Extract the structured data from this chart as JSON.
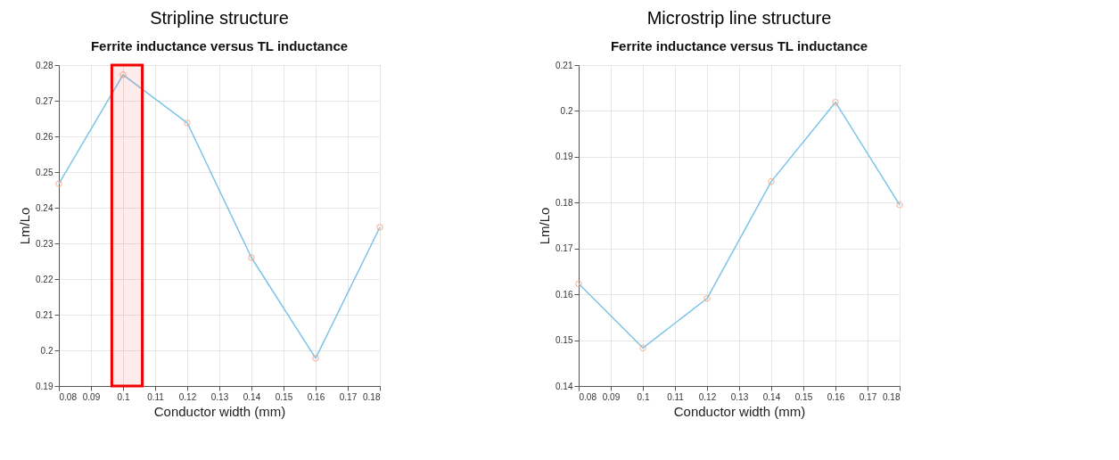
{
  "chart_data": [
    {
      "type": "line",
      "title": "Stripline structure",
      "subtitle": "Ferrite inductance versus TL inductance",
      "xlabel": "Conductor width (mm)",
      "ylabel": "Lm/Lo",
      "x": [
        0.08,
        0.1,
        0.12,
        0.14,
        0.16,
        0.18
      ],
      "series": [
        {
          "color": "#7ec4e6",
          "colors": [
            "#f4a582",
            "#f4a582",
            "#f4a582",
            "#f4a582",
            "#f4a582",
            "#f4a582"
          ],
          "values": [
            0.2467,
            0.2773,
            0.2638,
            0.226,
            0.1978,
            0.2345
          ]
        }
      ],
      "xlim": [
        0.08,
        0.18
      ],
      "xticks": [
        0.08,
        0.09,
        0.1,
        0.11,
        0.12,
        0.13,
        0.14,
        0.15,
        0.16,
        0.17,
        0.18
      ],
      "ylim": [
        0.19,
        0.28
      ],
      "yticks": [
        0.19,
        0.2,
        0.21,
        0.22,
        0.23,
        0.24,
        0.25,
        0.26,
        0.27,
        0.28
      ],
      "bands": [
        {
          "axis": "x",
          "from": 0.0965,
          "to": 0.106,
          "color": "#ee0000"
        }
      ],
      "grid": true,
      "marker": "circle",
      "line_style": "solid"
    },
    {
      "type": "line",
      "title": "Microstrip line structure",
      "subtitle": "Ferrite inductance versus TL inductance",
      "xlabel": "Conductor width (mm)",
      "ylabel": "Lm/Lo",
      "x": [
        0.08,
        0.1,
        0.12,
        0.14,
        0.16,
        0.18
      ],
      "series": [
        {
          "color": "#7ec4e6",
          "colors": [
            "#f4a582",
            "#f4a582",
            "#f4a582",
            "#f4a582",
            "#f4a582",
            "#f4a582"
          ],
          "values": [
            0.1623,
            0.1483,
            0.1591,
            0.1846,
            0.2019,
            0.1795
          ]
        }
      ],
      "xlim": [
        0.08,
        0.18
      ],
      "xticks": [
        0.08,
        0.09,
        0.1,
        0.11,
        0.12,
        0.13,
        0.14,
        0.15,
        0.16,
        0.17,
        0.18
      ],
      "ylim": [
        0.14,
        0.21
      ],
      "yticks": [
        0.14,
        0.15,
        0.16,
        0.17,
        0.18,
        0.19,
        0.2,
        0.21
      ],
      "grid": true,
      "marker": "circle",
      "line_style": "solid"
    }
  ]
}
